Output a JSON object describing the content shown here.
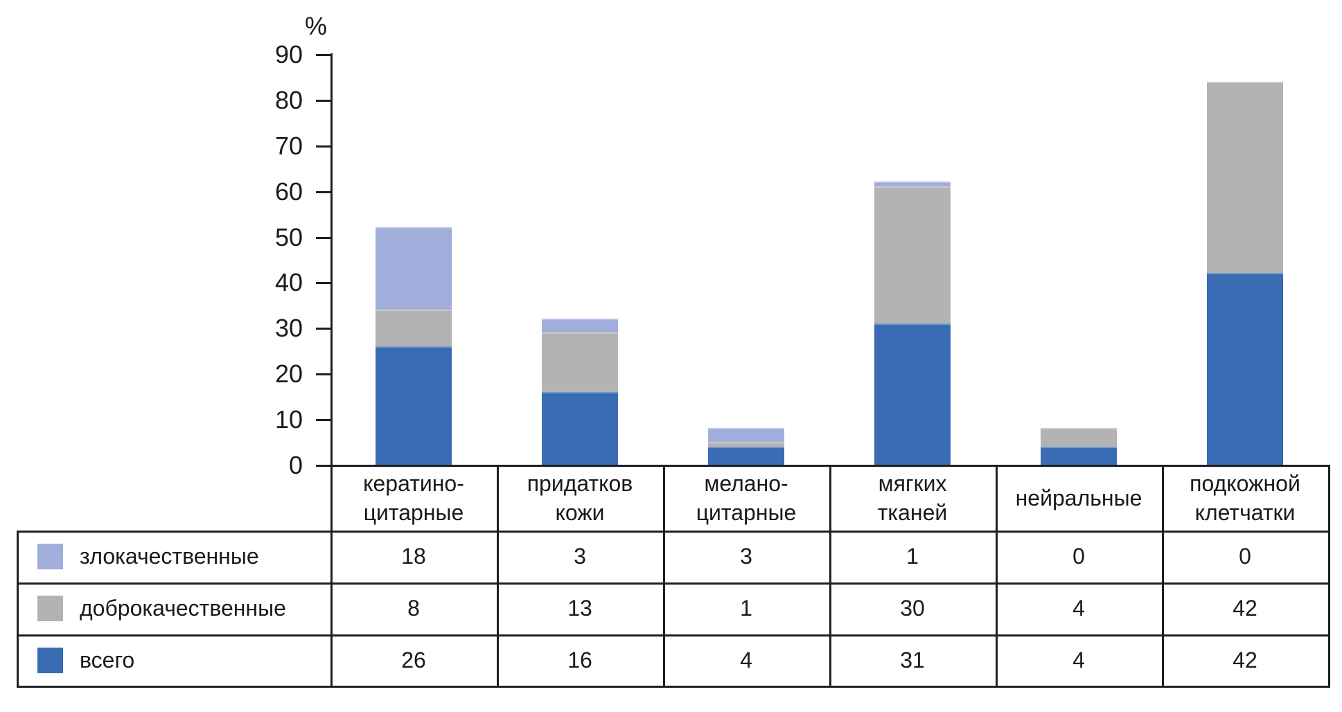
{
  "chart_data": {
    "type": "bar",
    "stacked": true,
    "title": "",
    "unit_label": "%",
    "ylim": [
      0,
      90
    ],
    "yticks": [
      0,
      10,
      20,
      30,
      40,
      50,
      60,
      70,
      80,
      90
    ],
    "grid": false,
    "legend_position": "table-rows-left",
    "categories": [
      "кератино-цитарные",
      "придатков кожи",
      "мелано-цитарные",
      "мягких тканей",
      "нейральные",
      "подкожной клетчатки"
    ],
    "category_label_lines": [
      [
        "кератино-",
        "цитарные"
      ],
      [
        "придатков",
        "кожи"
      ],
      [
        "мелано-",
        "цитарные"
      ],
      [
        "мягких",
        "тканей"
      ],
      [
        "нейральные"
      ],
      [
        "подкожной",
        "клетчатки"
      ]
    ],
    "series": [
      {
        "name": "злокачественные",
        "color": "#a1aedb",
        "values": [
          18,
          3,
          3,
          1,
          0,
          0
        ]
      },
      {
        "name": "доброкачественные",
        "color": "#b3b3b3",
        "values": [
          8,
          13,
          1,
          30,
          4,
          42
        ]
      },
      {
        "name": "всего",
        "color": "#3a6cb3",
        "values": [
          26,
          16,
          4,
          31,
          4,
          42
        ]
      }
    ],
    "stack_order_bottom_to_top": [
      "всего",
      "доброкачественные",
      "злокачественные"
    ],
    "stack_totals": [
      52,
      32,
      8,
      62,
      8,
      84
    ],
    "colors": {
      "axis": "#1f1f1f",
      "text": "#1a1a1a",
      "background": "#ffffff"
    }
  }
}
